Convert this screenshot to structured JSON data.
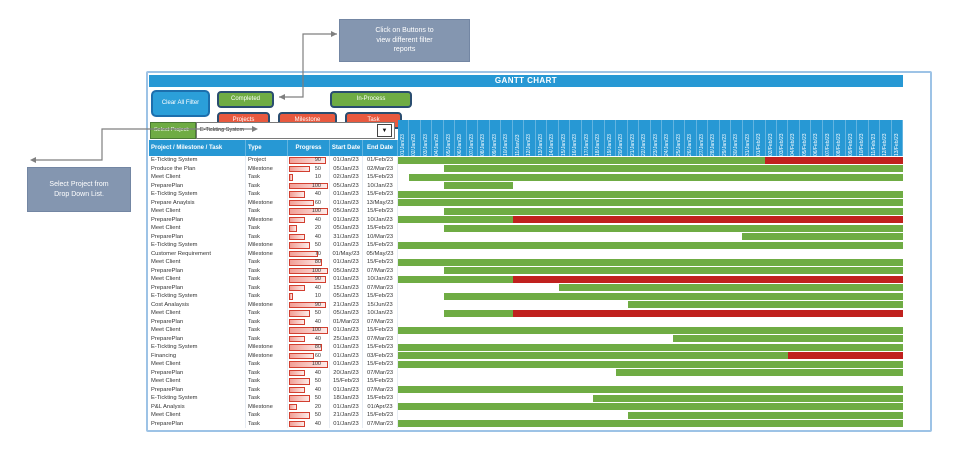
{
  "title": "GANTT CHART",
  "callouts": {
    "top": "Click on Buttons to\nview different filter\nreports",
    "left": "Select Project from\nDrop Down List."
  },
  "filters": {
    "clear": "Clear All Filter",
    "completed": "Completed",
    "in_process": "In-Process",
    "projects": "Projects",
    "milestone": "Milestone",
    "task": "Task"
  },
  "project_selector": {
    "label": "Select Project:",
    "value": "E-Tickting System",
    "arrow": "▼"
  },
  "table": {
    "headers": {
      "name": "Project / Milestone / Task",
      "type": "Type",
      "progress": "Progress",
      "start": "Start Date",
      "end": "End Date"
    },
    "rows": [
      {
        "name": "E-Tickting System",
        "type": "Project",
        "progress": 90,
        "start": "01/Jan/23",
        "end": "01/Feb/23",
        "green": [
          1,
          32
        ],
        "red": [
          33,
          44
        ]
      },
      {
        "name": "Produce the Plan",
        "type": "Milestone",
        "progress": 50,
        "start": "05/Jan/23",
        "end": "02/Mar/23",
        "green": [
          5,
          44
        ],
        "red": null
      },
      {
        "name": "Meet Client",
        "type": "Task",
        "progress": 10,
        "start": "02/Jan/23",
        "end": "15/Feb/23",
        "green": [
          2,
          44
        ],
        "red": null
      },
      {
        "name": "PreparePlan",
        "type": "Task",
        "progress": 100,
        "start": "05/Jan/23",
        "end": "10/Jan/23",
        "green": [
          5,
          10
        ],
        "red": null
      },
      {
        "name": "E-Tickting System",
        "type": "Task",
        "progress": 40,
        "start": "01/Jan/23",
        "end": "15/Feb/23",
        "green": [
          1,
          44
        ],
        "red": null
      },
      {
        "name": "Prepare Anaylsis",
        "type": "Milestone",
        "progress": 60,
        "start": "01/Jan/23",
        "end": "13/May/23",
        "green": [
          1,
          44
        ],
        "red": null
      },
      {
        "name": "Meet Client",
        "type": "Task",
        "progress": 100,
        "start": "05/Jan/23",
        "end": "15/Feb/23",
        "green": [
          5,
          44
        ],
        "red": null
      },
      {
        "name": "PreparePlan",
        "type": "Milestone",
        "progress": 40,
        "start": "01/Jan/23",
        "end": "10/Jan/23",
        "green": [
          1,
          10
        ],
        "red": [
          11,
          44
        ]
      },
      {
        "name": "Meet Client",
        "type": "Task",
        "progress": 20,
        "start": "05/Jan/23",
        "end": "15/Feb/23",
        "green": [
          5,
          44
        ],
        "red": null
      },
      {
        "name": "PreparePlan",
        "type": "Task",
        "progress": 40,
        "start": "31/Jan/23",
        "end": "10/Mar/23",
        "green": [
          31,
          44
        ],
        "red": null
      },
      {
        "name": "E-Tickting System",
        "type": "Milestone",
        "progress": 50,
        "start": "01/Jan/23",
        "end": "15/Feb/23",
        "green": [
          1,
          44
        ],
        "red": null
      },
      {
        "name": "Customer Requirement",
        "type": "Milestone",
        "progress": 70,
        "start": "01/May/23",
        "end": "05/May/23",
        "green": null,
        "red": null
      },
      {
        "name": "Meet Client",
        "type": "Task",
        "progress": 80,
        "start": "01/Jan/23",
        "end": "15/Feb/23",
        "green": [
          1,
          44
        ],
        "red": null
      },
      {
        "name": "PreparePlan",
        "type": "Task",
        "progress": 100,
        "start": "05/Jan/23",
        "end": "07/Mar/23",
        "green": [
          5,
          44
        ],
        "red": null
      },
      {
        "name": "Meet Client",
        "type": "Task",
        "progress": 90,
        "start": "01/Jan/23",
        "end": "10/Jan/23",
        "green": [
          1,
          10
        ],
        "red": [
          11,
          44
        ]
      },
      {
        "name": "PreparePlan",
        "type": "Task",
        "progress": 40,
        "start": "15/Jan/23",
        "end": "07/Mar/23",
        "green": [
          15,
          44
        ],
        "red": null
      },
      {
        "name": "E-Tickting System",
        "type": "Task",
        "progress": 10,
        "start": "05/Jan/23",
        "end": "15/Feb/23",
        "green": [
          5,
          44
        ],
        "red": null
      },
      {
        "name": "Cost Analaysis",
        "type": "Milestone",
        "progress": 90,
        "start": "21/Jan/23",
        "end": "15/Jun/23",
        "green": [
          21,
          44
        ],
        "red": null
      },
      {
        "name": "Meet Client",
        "type": "Task",
        "progress": 50,
        "start": "05/Jan/23",
        "end": "10/Jan/23",
        "green": [
          5,
          10
        ],
        "red": [
          11,
          44
        ]
      },
      {
        "name": "PreparePlan",
        "type": "Task",
        "progress": 40,
        "start": "01/Mar/23",
        "end": "07/Mar/23",
        "green": null,
        "red": null
      },
      {
        "name": "Meet Client",
        "type": "Task",
        "progress": 100,
        "start": "01/Jan/23",
        "end": "15/Feb/23",
        "green": [
          1,
          44
        ],
        "red": null
      },
      {
        "name": "PreparePlan",
        "type": "Task",
        "progress": 40,
        "start": "25/Jan/23",
        "end": "07/Mar/23",
        "green": [
          25,
          44
        ],
        "red": null
      },
      {
        "name": "E-Tickting System",
        "type": "Milestone",
        "progress": 80,
        "start": "01/Jan/23",
        "end": "15/Feb/23",
        "green": [
          1,
          44
        ],
        "red": null
      },
      {
        "name": "Financing",
        "type": "Milestone",
        "progress": 60,
        "start": "01/Jan/23",
        "end": "03/Feb/23",
        "green": [
          1,
          34
        ],
        "red": [
          35,
          44
        ]
      },
      {
        "name": "Meet Client",
        "type": "Task",
        "progress": 100,
        "start": "01/Jan/23",
        "end": "15/Feb/23",
        "green": [
          1,
          44
        ],
        "red": null
      },
      {
        "name": "PreparePlan",
        "type": "Task",
        "progress": 40,
        "start": "20/Jan/23",
        "end": "07/Mar/23",
        "green": [
          20,
          44
        ],
        "red": null
      },
      {
        "name": "Meet Client",
        "type": "Task",
        "progress": 50,
        "start": "15/Feb/23",
        "end": "15/Feb/23",
        "green": null,
        "red": null
      },
      {
        "name": "PreparePlan",
        "type": "Task",
        "progress": 40,
        "start": "01/Jan/23",
        "end": "07/Mar/23",
        "green": [
          1,
          44
        ],
        "red": null
      },
      {
        "name": "E-Tickting System",
        "type": "Task",
        "progress": 50,
        "start": "18/Jan/23",
        "end": "15/Feb/23",
        "green": [
          18,
          44
        ],
        "red": null
      },
      {
        "name": "P&L Analysis",
        "type": "Milestone",
        "progress": 20,
        "start": "01/Jan/23",
        "end": "01/Apr/23",
        "green": [
          1,
          44
        ],
        "red": null
      },
      {
        "name": "Meet Client",
        "type": "Task",
        "progress": 50,
        "start": "21/Jan/23",
        "end": "15/Feb/23",
        "green": [
          21,
          44
        ],
        "red": null
      },
      {
        "name": "PreparePlan",
        "type": "Task",
        "progress": 40,
        "start": "01/Jan/23",
        "end": "07/Mar/23",
        "green": [
          1,
          44
        ],
        "red": null
      }
    ]
  },
  "timeline": {
    "columns": 44,
    "dates": [
      "01/Jan/23",
      "02/Jan/23",
      "03/Jan/23",
      "04/Jan/23",
      "05/Jan/23",
      "06/Jan/23",
      "07/Jan/23",
      "08/Jan/23",
      "09/Jan/23",
      "10/Jan/23",
      "11/Jan/23",
      "12/Jan/23",
      "13/Jan/23",
      "14/Jan/23",
      "15/Jan/23",
      "16/Jan/23",
      "17/Jan/23",
      "18/Jan/23",
      "19/Jan/23",
      "20/Jan/23",
      "21/Jan/23",
      "22/Jan/23",
      "23/Jan/23",
      "24/Jan/23",
      "25/Jan/23",
      "26/Jan/23",
      "27/Jan/23",
      "28/Jan/23",
      "29/Jan/23",
      "30/Jan/23",
      "31/Jan/23",
      "01/Feb/23",
      "02/Feb/23",
      "03/Feb/23",
      "04/Feb/23",
      "05/Feb/23",
      "06/Feb/23",
      "07/Feb/23",
      "08/Feb/23",
      "09/Feb/23",
      "10/Feb/23",
      "11/Feb/23",
      "12/Feb/23",
      "13/Feb/23"
    ]
  },
  "colors": {
    "header_blue": "#2798D4",
    "bar_green": "#6FAC44",
    "bar_red": "#C0211E",
    "button_blue": "#2B9FD9",
    "button_red": "#E8593F",
    "callout_gray_blue": "#8496B0",
    "panel_border": "#9DC3E6"
  }
}
